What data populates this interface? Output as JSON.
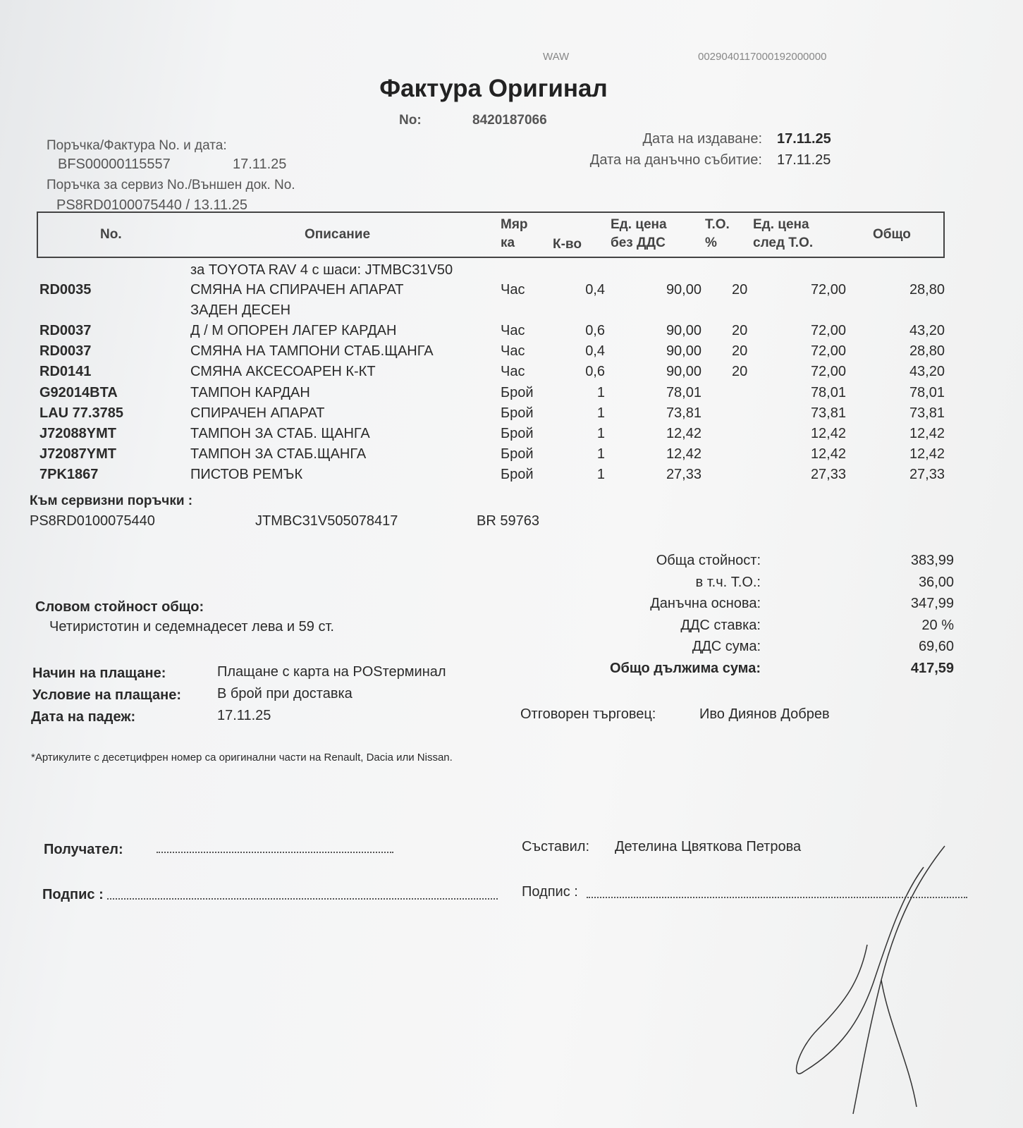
{
  "header": {
    "top_marks": [
      "WAW",
      "0029040117000192000000"
    ],
    "title": "Фактура Оригинал",
    "number_label": "No:",
    "number": "8420187066",
    "order_invoice_label": "Поръчка/Фактура No. и дата:",
    "order_invoice_no": "BFS00000115557",
    "order_invoice_date": "17.11.25",
    "service_order_label": "Поръчка за сервиз No./Външен док. No.",
    "service_order_value": "PS8RD0100075440 / 13.11.25",
    "issue_date_label": "Дата на издаване:",
    "issue_date": "17.11.25",
    "tax_event_label": "Дата на данъчно събитие:",
    "tax_event_date": "17.11.25"
  },
  "table": {
    "columns": [
      "No.",
      "Описание",
      "Мяр ка",
      "К-во",
      "Ед. цена без ДДС",
      "Т.О. %",
      "Ед. цена след Т.О.",
      "Общо"
    ],
    "rows": [
      {
        "no": "",
        "desc": "за TOYOTA RAV 4 с шаси: JTMBC31V50",
        "unit": "",
        "qty": "",
        "price": "",
        "disc": "",
        "after": "",
        "total": ""
      },
      {
        "no": "RD0035",
        "desc": "СМЯНА НА СПИРАЧЕН АПАРАТ",
        "unit": "Час",
        "qty": "0,4",
        "price": "90,00",
        "disc": "20",
        "after": "72,00",
        "total": "28,80"
      },
      {
        "no": "",
        "desc": "ЗАДЕН ДЕСЕН",
        "unit": "",
        "qty": "",
        "price": "",
        "disc": "",
        "after": "",
        "total": ""
      },
      {
        "no": "RD0037",
        "desc": "Д / М ОПОРЕН ЛАГЕР КАРДАН",
        "unit": "Час",
        "qty": "0,6",
        "price": "90,00",
        "disc": "20",
        "after": "72,00",
        "total": "43,20"
      },
      {
        "no": "RD0037",
        "desc": "СМЯНА НА ТАМПОНИ СТАБ.ЩАНГА",
        "unit": "Час",
        "qty": "0,4",
        "price": "90,00",
        "disc": "20",
        "after": "72,00",
        "total": "28,80"
      },
      {
        "no": "RD0141",
        "desc": "СМЯНА  АКСЕСОАРЕН  К-КТ",
        "unit": "Час",
        "qty": "0,6",
        "price": "90,00",
        "disc": "20",
        "after": "72,00",
        "total": "43,20"
      },
      {
        "no": "G92014BTA",
        "desc": "ТАМПОН КАРДАН",
        "unit": "Брой",
        "qty": "1",
        "price": "78,01",
        "disc": "",
        "after": "78,01",
        "total": "78,01"
      },
      {
        "no": "LAU 77.3785",
        "desc": "СПИРАЧЕН АПАРАТ",
        "unit": "Брой",
        "qty": "1",
        "price": "73,81",
        "disc": "",
        "after": "73,81",
        "total": "73,81"
      },
      {
        "no": "J72088YMT",
        "desc": "ТАМПОН ЗА СТАБ. ЩАНГА",
        "unit": "Брой",
        "qty": "1",
        "price": "12,42",
        "disc": "",
        "after": "12,42",
        "total": "12,42"
      },
      {
        "no": "J72087YMT",
        "desc": "ТАМПОН ЗА СТАБ.ЩАНГА",
        "unit": "Брой",
        "qty": "1",
        "price": "12,42",
        "disc": "",
        "after": "12,42",
        "total": "12,42"
      },
      {
        "no": "7PK1867",
        "desc": "ПИСТОВ РЕМЪК",
        "unit": "Брой",
        "qty": "1",
        "price": "27,33",
        "disc": "",
        "after": "27,33",
        "total": "27,33"
      }
    ]
  },
  "service_orders": {
    "label": "Към сервизни поръчки :",
    "order": "PS8RD0100075440",
    "vin": "JTMBC31V505078417",
    "plate": "BR 59763"
  },
  "totals": [
    {
      "label": "Обща стойност:",
      "value": "383,99"
    },
    {
      "label": "в т.ч. Т.О.:",
      "value": "36,00"
    },
    {
      "label": "Данъчна основа:",
      "value": "347,99"
    },
    {
      "label": "ДДС ставка:",
      "value": "20 %"
    },
    {
      "label": "ДДС сума:",
      "value": "69,60"
    },
    {
      "label": "Общо дължима сума:",
      "value": "417,59"
    }
  ],
  "words": {
    "label": "Словом стойност общо:",
    "value": "Четиристотин и седемнадесет лева и 59 ст."
  },
  "payment": {
    "method_label": "Начин на плащане:",
    "method": "Плащане с карта на POSтерминал",
    "terms_label": "Условие на плащане:",
    "terms": "В брой при доставка",
    "due_label": "Дата на падеж:",
    "due": "17.11.25",
    "dealer_label": "Отговорен търговец:",
    "dealer": "Иво Диянов Добрев"
  },
  "footnote": "*Артикулите с десетцифрен номер са оригинални части на Renault, Dacia или Nissan.",
  "signatures": {
    "recipient_label": "Получател:",
    "recipient_sign_label": "Подпис :",
    "composer_label": "Съставил:",
    "composer": "Детелина Цвяткова Петрова",
    "composer_sign_label": "Подпис :"
  }
}
